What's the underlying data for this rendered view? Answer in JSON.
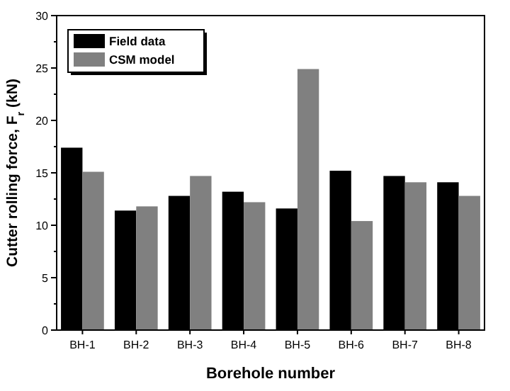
{
  "chart_data": {
    "type": "bar",
    "xlabel": "Borehole number",
    "ylabel": "Cutter rolling force, F$_{r}$ (kN)",
    "categories": [
      "BH-1",
      "BH-2",
      "BH-3",
      "BH-4",
      "BH-5",
      "BH-6",
      "BH-7",
      "BH-8"
    ],
    "series": [
      {
        "name": "Field data",
        "color": "#000000",
        "values": [
          17.4,
          11.4,
          12.8,
          13.2,
          11.6,
          15.2,
          14.7,
          14.1
        ]
      },
      {
        "name": "CSM model",
        "color": "#808080",
        "values": [
          15.1,
          11.8,
          14.7,
          12.2,
          24.9,
          10.4,
          14.1,
          12.8
        ]
      }
    ],
    "ylim": [
      0,
      30
    ],
    "yticks": [
      0,
      5,
      10,
      15,
      20,
      25,
      30
    ],
    "legend": "top left"
  }
}
